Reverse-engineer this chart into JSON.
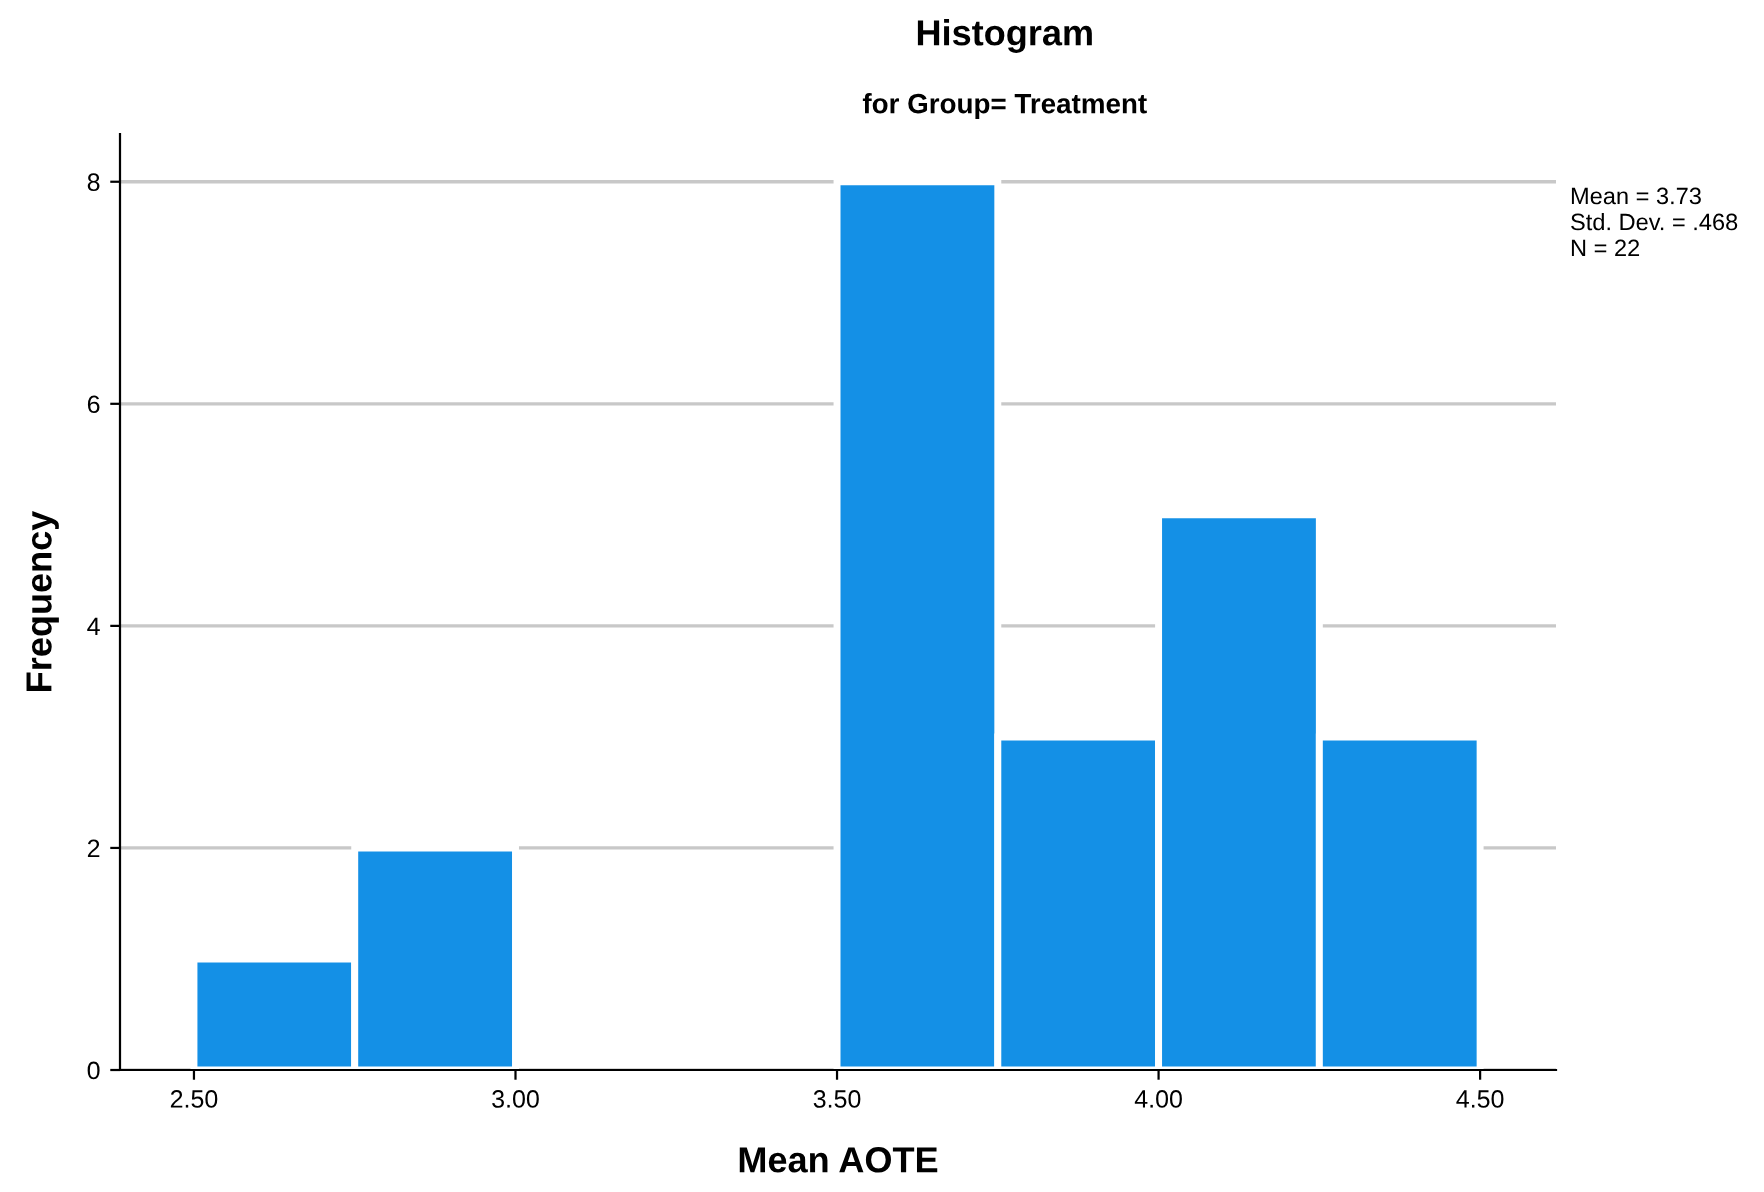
{
  "chart_data": {
    "type": "histogram",
    "title": "Histogram",
    "subtitle": "for Group= Treatment",
    "xlabel": "Mean AOTE",
    "ylabel": "Frequency",
    "bins": [
      2.5,
      2.75,
      3.0,
      3.25,
      3.5,
      3.75,
      4.0,
      4.25,
      4.5
    ],
    "values": [
      1,
      2,
      0,
      0,
      8,
      3,
      5,
      3
    ],
    "color": "#1490e6",
    "xlim": [
      2.385,
      4.618
    ],
    "xticks": [
      {
        "value": 2.5,
        "label": "2.50"
      },
      {
        "value": 3.0,
        "label": "3.00"
      },
      {
        "value": 3.5,
        "label": "3.50"
      },
      {
        "value": 4.0,
        "label": "4.00"
      },
      {
        "value": 4.5,
        "label": "4.50"
      }
    ],
    "ylim": [
      0,
      8.43
    ],
    "yticks": [
      0,
      2,
      4,
      6,
      8
    ],
    "grid": "y",
    "legend": false,
    "annotations": [
      "Mean = 3.73",
      "Std. Dev. = .468",
      "N = 22"
    ]
  }
}
